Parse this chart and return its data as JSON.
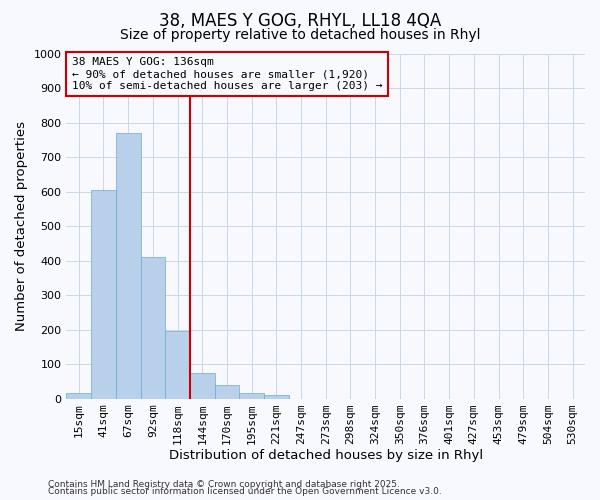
{
  "title": "38, MAES Y GOG, RHYL, LL18 4QA",
  "subtitle": "Size of property relative to detached houses in Rhyl",
  "xlabel": "Distribution of detached houses by size in Rhyl",
  "ylabel": "Number of detached properties",
  "bar_labels": [
    "15sqm",
    "41sqm",
    "67sqm",
    "92sqm",
    "118sqm",
    "144sqm",
    "170sqm",
    "195sqm",
    "221sqm",
    "247sqm",
    "273sqm",
    "298sqm",
    "324sqm",
    "350sqm",
    "376sqm",
    "401sqm",
    "427sqm",
    "453sqm",
    "479sqm",
    "504sqm",
    "530sqm"
  ],
  "bar_values": [
    15,
    605,
    770,
    410,
    195,
    75,
    40,
    15,
    10,
    0,
    0,
    0,
    0,
    0,
    0,
    0,
    0,
    0,
    0,
    0,
    0
  ],
  "bar_color": "#b8d0ea",
  "bar_edge_color": "#6aaad4",
  "vline_x_index": 5,
  "vline_color": "#cc0000",
  "ylim": [
    0,
    1000
  ],
  "yticks": [
    0,
    100,
    200,
    300,
    400,
    500,
    600,
    700,
    800,
    900,
    1000
  ],
  "annotation_line1": "38 MAES Y GOG: 136sqm",
  "annotation_line2": "← 90% of detached houses are smaller (1,920)",
  "annotation_line3": "10% of semi-detached houses are larger (203) →",
  "annotation_box_color": "#cc0000",
  "footer1": "Contains HM Land Registry data © Crown copyright and database right 2025.",
  "footer2": "Contains public sector information licensed under the Open Government Licence v3.0.",
  "bg_color": "#f8f8ff",
  "grid_color": "#c8d8e8",
  "title_fontsize": 12,
  "subtitle_fontsize": 10,
  "axis_label_fontsize": 9.5,
  "tick_fontsize": 8,
  "annotation_fontsize": 8,
  "footer_fontsize": 6.5
}
